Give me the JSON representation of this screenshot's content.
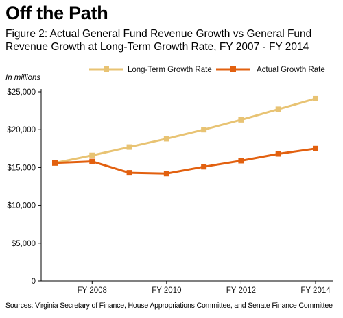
{
  "heading": "Off the Path",
  "chart_data": {
    "type": "line",
    "title": "Figure 2: Actual General Fund Revenue Growth vs General Fund Revenue Growth at Long-Term Growth Rate, FY 2007 - FY 2014",
    "units_label": "In millions",
    "x": [
      2007,
      2008,
      2009,
      2010,
      2011,
      2012,
      2013,
      2014
    ],
    "x_tick_values": [
      2008,
      2010,
      2012,
      2014
    ],
    "x_tick_labels": [
      "FY 2008",
      "FY 2010",
      "FY 2012",
      "FY 2014"
    ],
    "y_tick_values": [
      0,
      5000,
      10000,
      15000,
      20000,
      25000
    ],
    "y_tick_labels": [
      "0",
      "$5,000",
      "$10,000",
      "$15,000",
      "$20,000",
      "$25,000"
    ],
    "ylim": [
      0,
      25000
    ],
    "xlabel": "",
    "ylabel": "",
    "grid": false,
    "legend_position": "top",
    "series": [
      {
        "name": "Long-Term Growth Rate",
        "color": "#E8C373",
        "values": [
          15600,
          16600,
          17700,
          18800,
          20000,
          21300,
          22700,
          24100
        ]
      },
      {
        "name": "Actual Growth Rate",
        "color": "#E2600F",
        "values": [
          15600,
          15800,
          14300,
          14200,
          15100,
          15900,
          16800,
          17500
        ]
      }
    ],
    "source": "Sources: Virginia Secretary of Finance, House Appropriations Committee, and Senate Finance Committee"
  }
}
